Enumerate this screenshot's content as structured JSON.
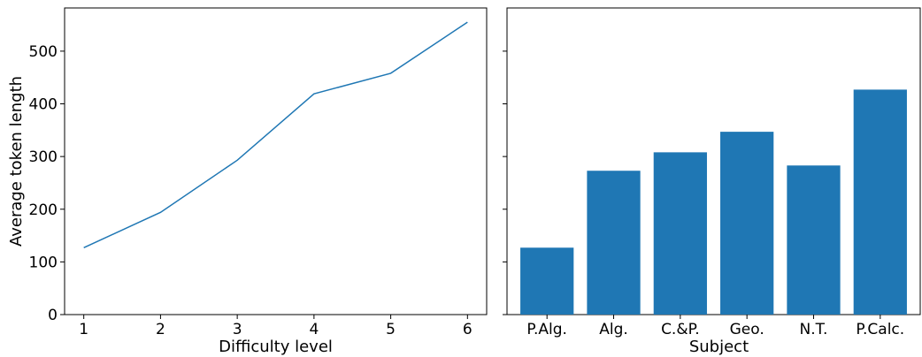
{
  "chart_data": [
    {
      "type": "line",
      "title": "",
      "xlabel": "Difficulty level",
      "ylabel": "Average token length",
      "x": [
        1,
        2,
        3,
        4,
        5,
        6
      ],
      "series": [
        {
          "values": [
            127,
            194,
            293,
            419,
            458,
            555
          ],
          "color": "#1f77b4"
        }
      ],
      "xticks": [
        "1",
        "2",
        "3",
        "4",
        "5",
        "6"
      ],
      "yticks": [
        "0",
        "100",
        "200",
        "300",
        "400",
        "500"
      ],
      "xlim": [
        0.75,
        6.25
      ],
      "ylim": [
        0,
        582
      ],
      "grid": false
    },
    {
      "type": "bar",
      "title": "",
      "xlabel": "Subject",
      "ylabel": "",
      "categories": [
        "P.Alg.",
        "Alg.",
        "C.&P.",
        "Geo.",
        "N.T.",
        "P.Calc."
      ],
      "values": [
        127,
        273,
        308,
        347,
        283,
        427
      ],
      "color": "#1f77b4",
      "ylim": [
        0,
        582
      ],
      "y_shared": true,
      "grid": false
    }
  ]
}
